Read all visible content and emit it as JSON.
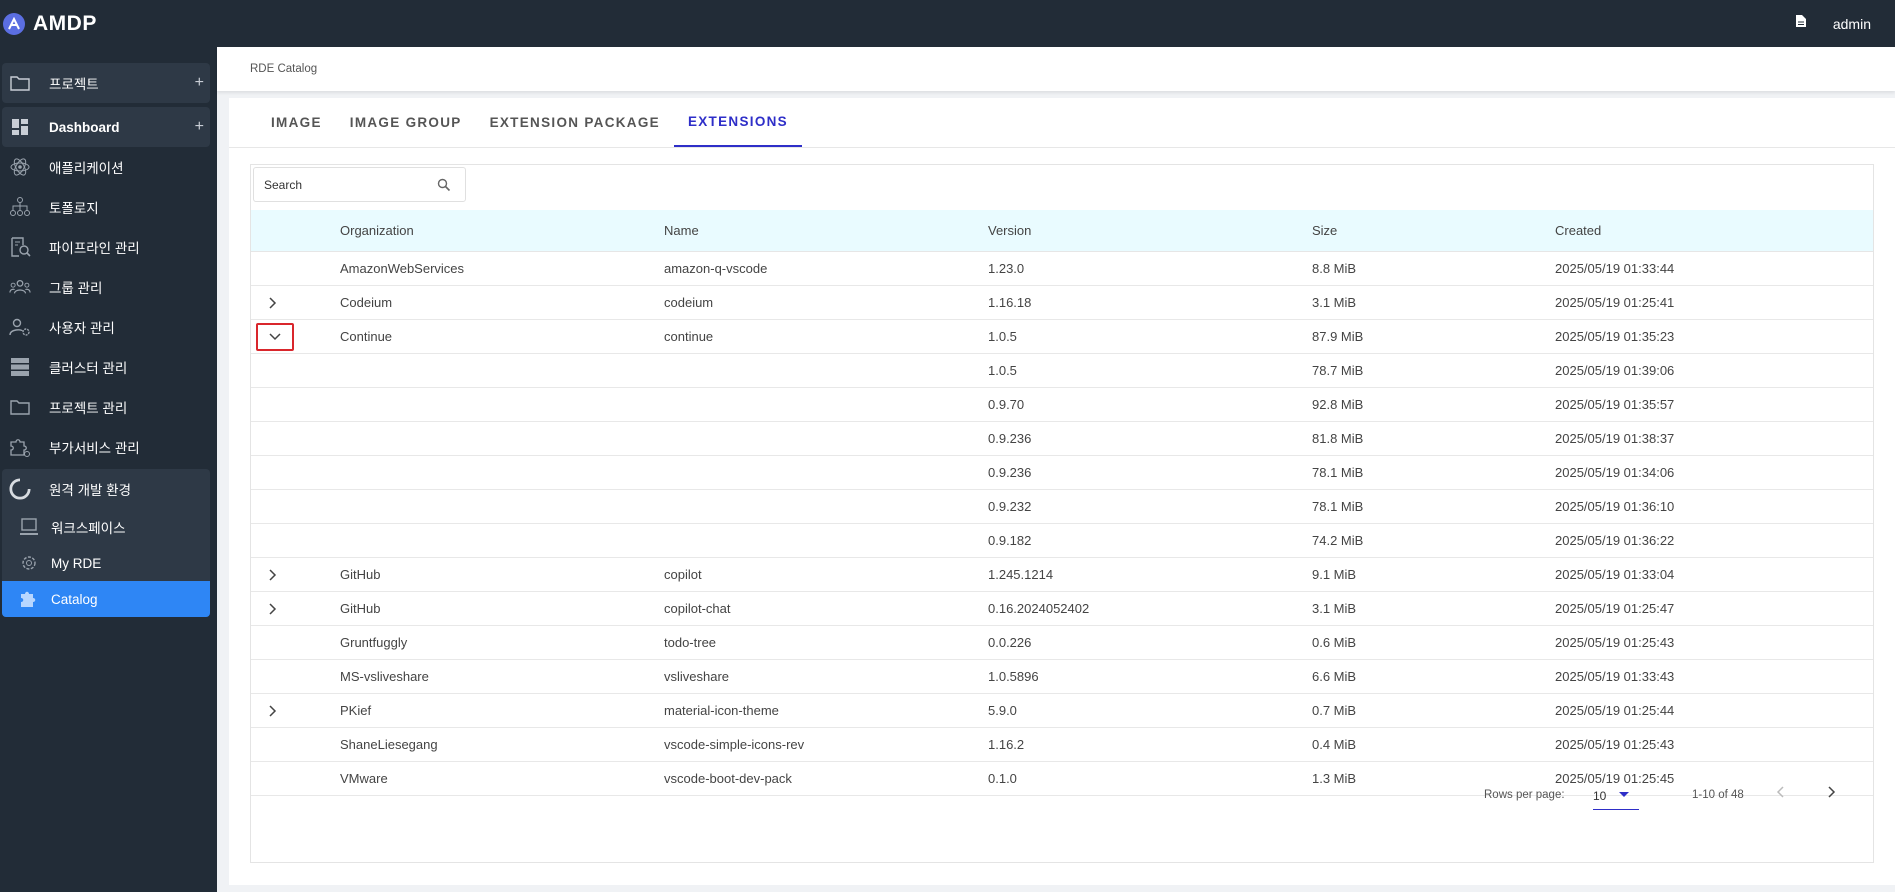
{
  "app": {
    "name": "AMDP",
    "user": "admin"
  },
  "sidebar": {
    "items": [
      {
        "label": "프로젝트",
        "icon": "folder-icon",
        "plus": "+"
      },
      {
        "label": "Dashboard",
        "icon": "dashboard-icon",
        "plus": "+"
      },
      {
        "label": "애플리케이션",
        "icon": "atom-icon"
      },
      {
        "label": "토폴로지",
        "icon": "topology-icon"
      },
      {
        "label": "파이프라인 관리",
        "icon": "pipeline-search-icon"
      },
      {
        "label": "그룹 관리",
        "icon": "group-icon"
      },
      {
        "label": "사용자 관리",
        "icon": "user-settings-icon"
      },
      {
        "label": "클러스터 관리",
        "icon": "server-icon"
      },
      {
        "label": "프로젝트 관리",
        "icon": "folder-icon"
      },
      {
        "label": "부가서비스 관리",
        "icon": "puzzle-gear-icon"
      }
    ],
    "rde": {
      "label": "원격 개발 환경",
      "sub": [
        {
          "label": "워크스페이스"
        },
        {
          "label": "My RDE"
        },
        {
          "label": "Catalog"
        }
      ]
    }
  },
  "breadcrumb": "RDE Catalog",
  "tabs": [
    "IMAGE",
    "IMAGE GROUP",
    "EXTENSION PACKAGE",
    "EXTENSIONS"
  ],
  "active_tab": "EXTENSIONS",
  "search": {
    "placeholder": "Search"
  },
  "table": {
    "columns": [
      "Organization",
      "Name",
      "Version",
      "Size",
      "Created"
    ],
    "rows": [
      {
        "expander": "none",
        "org": "AmazonWebServices",
        "name": "amazon-q-vscode",
        "version": "1.23.0",
        "size": "8.8 MiB",
        "created": "2025/05/19 01:33:44"
      },
      {
        "expander": "collapsed",
        "org": "Codeium",
        "name": "codeium",
        "version": "1.16.18",
        "size": "3.1 MiB",
        "created": "2025/05/19 01:25:41"
      },
      {
        "expander": "expanded",
        "org": "Continue",
        "name": "continue",
        "version": "1.0.5",
        "size": "87.9 MiB",
        "created": "2025/05/19 01:35:23"
      },
      {
        "expander": "none",
        "org": "",
        "name": "",
        "version": "1.0.5",
        "size": "78.7 MiB",
        "created": "2025/05/19 01:39:06"
      },
      {
        "expander": "none",
        "org": "",
        "name": "",
        "version": "0.9.70",
        "size": "92.8 MiB",
        "created": "2025/05/19 01:35:57"
      },
      {
        "expander": "none",
        "org": "",
        "name": "",
        "version": "0.9.236",
        "size": "81.8 MiB",
        "created": "2025/05/19 01:38:37"
      },
      {
        "expander": "none",
        "org": "",
        "name": "",
        "version": "0.9.236",
        "size": "78.1 MiB",
        "created": "2025/05/19 01:34:06"
      },
      {
        "expander": "none",
        "org": "",
        "name": "",
        "version": "0.9.232",
        "size": "78.1 MiB",
        "created": "2025/05/19 01:36:10"
      },
      {
        "expander": "none",
        "org": "",
        "name": "",
        "version": "0.9.182",
        "size": "74.2 MiB",
        "created": "2025/05/19 01:36:22"
      },
      {
        "expander": "collapsed",
        "org": "GitHub",
        "name": "copilot",
        "version": "1.245.1214",
        "size": "9.1 MiB",
        "created": "2025/05/19 01:33:04"
      },
      {
        "expander": "collapsed",
        "org": "GitHub",
        "name": "copilot-chat",
        "version": "0.16.2024052402",
        "size": "3.1 MiB",
        "created": "2025/05/19 01:25:47"
      },
      {
        "expander": "none",
        "org": "Gruntfuggly",
        "name": "todo-tree",
        "version": "0.0.226",
        "size": "0.6 MiB",
        "created": "2025/05/19 01:25:43"
      },
      {
        "expander": "none",
        "org": "MS-vsliveshare",
        "name": "vsliveshare",
        "version": "1.0.5896",
        "size": "6.6 MiB",
        "created": "2025/05/19 01:33:43"
      },
      {
        "expander": "collapsed",
        "org": "PKief",
        "name": "material-icon-theme",
        "version": "5.9.0",
        "size": "0.7 MiB",
        "created": "2025/05/19 01:25:44"
      },
      {
        "expander": "none",
        "org": "ShaneLiesegang",
        "name": "vscode-simple-icons-rev",
        "version": "1.16.2",
        "size": "0.4 MiB",
        "created": "2025/05/19 01:25:43"
      },
      {
        "expander": "none",
        "org": "VMware",
        "name": "vscode-boot-dev-pack",
        "version": "0.1.0",
        "size": "1.3 MiB",
        "created": "2025/05/19 01:25:45"
      }
    ]
  },
  "pagination": {
    "rows_per_page_label": "Rows per page:",
    "rows_per_page": "10",
    "range": "1-10 of 48"
  },
  "colors": {
    "topbar": "#222c37",
    "accent": "#2e2ec8",
    "active_nav": "#2e86f5",
    "header_bg": "#e9fbff",
    "highlight": "#d9262c"
  }
}
